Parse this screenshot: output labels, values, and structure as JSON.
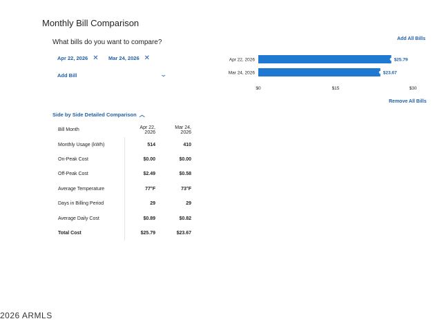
{
  "page": {
    "title": "Monthly Bill Comparison",
    "question": "What bills do you want to compare?",
    "selected_bills": [
      {
        "label": "Apr 22, 2026",
        "remove_icon": "close-icon"
      },
      {
        "label": "Mar 24, 2026",
        "remove_icon": "close-icon"
      }
    ],
    "add_bill_label": "Add Bill",
    "add_all_label": "Add All Bills",
    "remove_all_label": "Remove All Bills",
    "details_toggle_label": "Side by Side Detailed Comparison",
    "footer": "2026 ARMLS"
  },
  "table": {
    "headers": [
      "Bill Month",
      "Apr 22, 2026",
      "Mar 24, 2026"
    ],
    "rows": [
      {
        "label": "Monthly Usage (kWh)",
        "a": "514",
        "b": "410"
      },
      {
        "label": "On-Peak Cost",
        "a": "$0.00",
        "b": "$0.00"
      },
      {
        "label": "Off-Peak Cost",
        "a": "$2.49",
        "b": "$0.58"
      },
      {
        "label": "Average Temperature",
        "a": "77°F",
        "b": "73°F"
      },
      {
        "label": "Days in Billing Period",
        "a": "29",
        "b": "29"
      },
      {
        "label": "Average Daily Cost",
        "a": "$0.89",
        "b": "$0.82"
      },
      {
        "label": "Total Cost",
        "a": "$25.79",
        "b": "$23.67"
      }
    ]
  },
  "colors": {
    "accent": "#1f5fa8",
    "bar": "#1f78d1"
  },
  "chart_data": {
    "type": "bar",
    "orientation": "horizontal",
    "categories": [
      "Apr 22, 2026",
      "Mar 24, 2026"
    ],
    "values": [
      25.79,
      23.67
    ],
    "value_labels": [
      "$25.79",
      "$23.67"
    ],
    "xlim": [
      0,
      30
    ],
    "ticks": [
      0,
      15,
      30
    ],
    "tick_labels": [
      "$0",
      "$15",
      "$30"
    ]
  }
}
